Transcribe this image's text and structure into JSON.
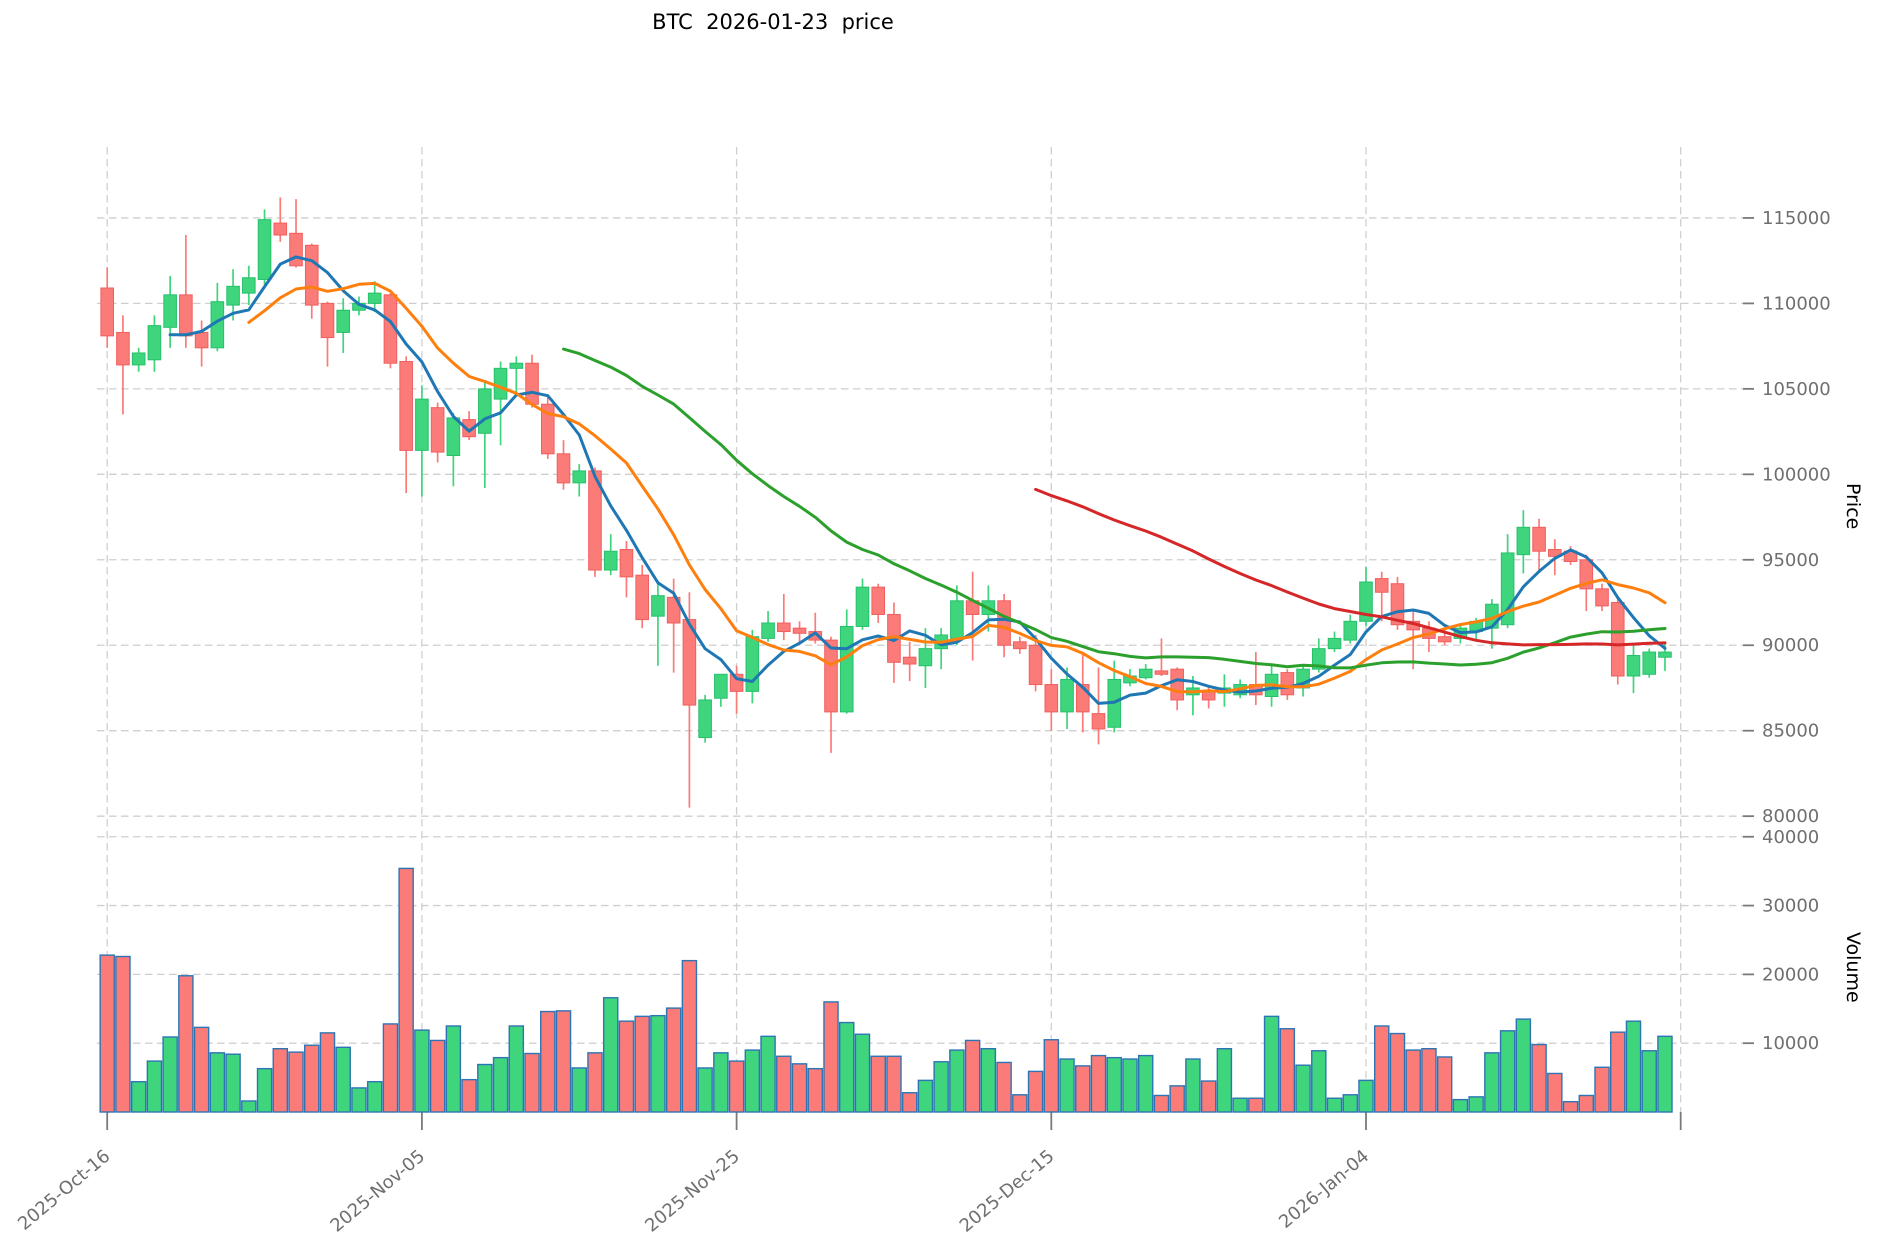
{
  "title": "BTC  2026-01-23  price",
  "price_axis": {
    "label": "Price",
    "ticks": [
      115000,
      110000,
      105000,
      100000,
      95000,
      90000,
      85000,
      80000
    ]
  },
  "volume_axis": {
    "label": "Volume",
    "ticks": [
      40000,
      30000,
      20000,
      10000
    ]
  },
  "x_axis": {
    "tick_days": [
      0,
      20,
      40,
      60,
      80,
      100
    ],
    "tick_labels": [
      "2025-Oct-16",
      "2025-Nov-05",
      "2025-Nov-25",
      "2025-Dec-15",
      "2026-Jan-04",
      ""
    ]
  },
  "moving_averages": {
    "windows": [
      5,
      10,
      30,
      60
    ],
    "colors": [
      "#1f77b4",
      "#ff7f0e",
      "#2ca02c",
      "#d62728"
    ]
  },
  "colors": {
    "up": "#3ed57c",
    "down": "#fa7b78",
    "up_edge": "#27c06d",
    "down_edge": "#f05f5e",
    "volume_edge": "#2e74b5",
    "grid": "#cfcfcf",
    "tick_text": "#6f6f6f",
    "tick_mark": "#7a7a7a"
  },
  "chart_data": {
    "type": "candlestick+volume+line",
    "title": "BTC  2026-01-23  price",
    "ylabel": "Price",
    "ylabel2": "Volume",
    "price_ylim": [
      79600,
      119150
    ],
    "volume_ylim": [
      0,
      42000
    ],
    "grid": true,
    "dates": [
      "2025-10-16",
      "2025-10-17",
      "2025-10-18",
      "2025-10-19",
      "2025-10-20",
      "2025-10-21",
      "2025-10-22",
      "2025-10-23",
      "2025-10-24",
      "2025-10-25",
      "2025-10-26",
      "2025-10-27",
      "2025-10-28",
      "2025-10-29",
      "2025-10-30",
      "2025-10-31",
      "2025-11-01",
      "2025-11-02",
      "2025-11-03",
      "2025-11-04",
      "2025-11-05",
      "2025-11-06",
      "2025-11-07",
      "2025-11-08",
      "2025-11-09",
      "2025-11-10",
      "2025-11-11",
      "2025-11-12",
      "2025-11-13",
      "2025-11-14",
      "2025-11-15",
      "2025-11-16",
      "2025-11-17",
      "2025-11-18",
      "2025-11-19",
      "2025-11-20",
      "2025-11-21",
      "2025-11-22",
      "2025-11-23",
      "2025-11-24",
      "2025-11-25",
      "2025-11-26",
      "2025-11-27",
      "2025-11-28",
      "2025-11-29",
      "2025-11-30",
      "2025-12-01",
      "2025-12-02",
      "2025-12-03",
      "2025-12-04",
      "2025-12-05",
      "2025-12-06",
      "2025-12-07",
      "2025-12-08",
      "2025-12-09",
      "2025-12-10",
      "2025-12-11",
      "2025-12-12",
      "2025-12-13",
      "2025-12-14",
      "2025-12-15",
      "2025-12-16",
      "2025-12-17",
      "2025-12-18",
      "2025-12-19",
      "2025-12-20",
      "2025-12-21",
      "2025-12-22",
      "2025-12-23",
      "2025-12-24",
      "2025-12-25",
      "2025-12-26",
      "2025-12-27",
      "2025-12-28",
      "2025-12-29",
      "2025-12-30",
      "2025-12-31",
      "2026-01-01",
      "2026-01-02",
      "2026-01-03",
      "2026-01-04",
      "2026-01-05",
      "2026-01-06",
      "2026-01-07",
      "2026-01-08",
      "2026-01-09",
      "2026-01-10",
      "2026-01-11",
      "2026-01-12",
      "2026-01-13",
      "2026-01-14",
      "2026-01-15",
      "2026-01-16",
      "2026-01-17",
      "2026-01-18",
      "2026-01-19",
      "2026-01-20",
      "2026-01-21",
      "2026-01-22",
      "2026-01-23"
    ],
    "open": [
      110900,
      108300,
      106400,
      106700,
      108600,
      110500,
      108300,
      107400,
      109900,
      110600,
      111400,
      114700,
      114100,
      113400,
      110000,
      108300,
      109600,
      110000,
      110500,
      106600,
      101400,
      103900,
      101100,
      103200,
      102400,
      104400,
      106200,
      106500,
      104100,
      101200,
      99500,
      100200,
      94400,
      95600,
      94100,
      91700,
      92800,
      91500,
      84600,
      86900,
      88300,
      87300,
      90400,
      91300,
      91000,
      90800,
      90300,
      86100,
      91100,
      93400,
      91800,
      89300,
      88800,
      89800,
      90400,
      92600,
      91800,
      92600,
      90200,
      90000,
      87700,
      86100,
      87700,
      86000,
      85200,
      87800,
      88100,
      88500,
      88600,
      87100,
      87300,
      87200,
      87100,
      87700,
      87000,
      88400,
      87500,
      88600,
      89800,
      90300,
      91400,
      93900,
      93600,
      91400,
      91000,
      90500,
      90400,
      90800,
      91000,
      91200,
      95300,
      96900,
      95600,
      95500,
      95000,
      93300,
      92500,
      88200,
      88300,
      89300
    ],
    "high": [
      112100,
      109300,
      107400,
      109300,
      111600,
      114000,
      109000,
      111200,
      112000,
      112200,
      115500,
      116200,
      116100,
      113500,
      110100,
      110300,
      110400,
      111300,
      110600,
      106900,
      105200,
      104200,
      103600,
      103700,
      105400,
      106600,
      106900,
      107000,
      104500,
      102000,
      100600,
      100400,
      96500,
      96100,
      94700,
      93700,
      93900,
      93100,
      87100,
      88300,
      88800,
      90900,
      92000,
      93000,
      91400,
      91900,
      90500,
      92100,
      93900,
      93600,
      92500,
      90200,
      91000,
      91000,
      93500,
      94300,
      93500,
      93000,
      90500,
      90600,
      88600,
      88700,
      89500,
      88700,
      89100,
      88600,
      88900,
      90400,
      88700,
      88200,
      87600,
      88300,
      88000,
      89600,
      88900,
      88600,
      88900,
      90400,
      90800,
      91800,
      94600,
      94300,
      94000,
      92100,
      91400,
      90900,
      91300,
      91600,
      92700,
      96500,
      97900,
      97400,
      96200,
      95800,
      95300,
      93600,
      92700,
      90000,
      89800,
      90100
    ],
    "low": [
      107400,
      103500,
      106000,
      106000,
      107400,
      107400,
      106300,
      107200,
      109000,
      109900,
      111100,
      113600,
      112100,
      109100,
      106300,
      107100,
      109300,
      109500,
      106200,
      98900,
      98700,
      100700,
      99300,
      102000,
      99200,
      101700,
      104800,
      103900,
      100900,
      99100,
      98700,
      94000,
      94100,
      92800,
      91000,
      88800,
      88400,
      80500,
      84300,
      86400,
      86000,
      86600,
      90200,
      90300,
      90100,
      90100,
      83700,
      86000,
      90900,
      91300,
      87800,
      87900,
      87500,
      88600,
      90000,
      89100,
      90800,
      89300,
      89500,
      87300,
      85000,
      85100,
      84900,
      84200,
      84900,
      87600,
      88000,
      88200,
      86200,
      85900,
      86300,
      86400,
      86900,
      86500,
      86400,
      86800,
      87000,
      88400,
      89600,
      90100,
      91100,
      91400,
      90900,
      88600,
      89600,
      90000,
      90100,
      90300,
      89800,
      91000,
      94200,
      94300,
      94100,
      94700,
      92000,
      92000,
      87700,
      87200,
      88100,
      88500
    ],
    "close": [
      108100,
      106400,
      107100,
      108700,
      110500,
      108100,
      107400,
      110100,
      111000,
      111500,
      114900,
      114000,
      112200,
      109900,
      108000,
      109600,
      110000,
      110600,
      106500,
      101400,
      104400,
      101300,
      103300,
      102200,
      105000,
      106200,
      106500,
      104100,
      101200,
      99500,
      100200,
      94400,
      95500,
      94000,
      91500,
      92900,
      91300,
      86500,
      86800,
      88300,
      87300,
      90500,
      91300,
      90800,
      90700,
      90300,
      86100,
      91100,
      93400,
      91800,
      89000,
      88900,
      89800,
      90600,
      92600,
      91800,
      92600,
      90000,
      89800,
      87700,
      86100,
      88000,
      86100,
      85100,
      88000,
      88200,
      88600,
      88300,
      86800,
      87500,
      86800,
      87500,
      87700,
      87100,
      88300,
      87100,
      88600,
      89800,
      90400,
      91400,
      93700,
      93100,
      91200,
      90900,
      90400,
      90200,
      91000,
      91400,
      92400,
      95400,
      96900,
      95500,
      95200,
      94900,
      93300,
      92300,
      88200,
      89400,
      89600,
      89600
    ],
    "volume": [
      22800,
      22600,
      4400,
      7400,
      10900,
      19800,
      12300,
      8600,
      8400,
      1600,
      6300,
      9200,
      8700,
      9700,
      11500,
      9400,
      3500,
      4400,
      12800,
      35400,
      11900,
      10400,
      12500,
      4700,
      6900,
      7900,
      12500,
      8500,
      14600,
      14700,
      6400,
      8600,
      16600,
      13200,
      13900,
      14000,
      15100,
      22000,
      6400,
      8600,
      7400,
      9000,
      11000,
      8100,
      7000,
      6300,
      16000,
      13000,
      11300,
      8100,
      8100,
      2800,
      4600,
      7300,
      9000,
      10400,
      9200,
      7200,
      2500,
      5900,
      10500,
      7700,
      6700,
      8200,
      7900,
      7700,
      8200,
      2400,
      3800,
      7700,
      4500,
      9200,
      2000,
      2000,
      13900,
      12100,
      6800,
      8900,
      2000,
      2500,
      4600,
      12500,
      11400,
      9000,
      9200,
      8000,
      1800,
      2200,
      8600,
      11800,
      13500,
      9800,
      5600,
      1500,
      2400,
      6500,
      11600,
      13200,
      8900,
      11000
    ]
  }
}
